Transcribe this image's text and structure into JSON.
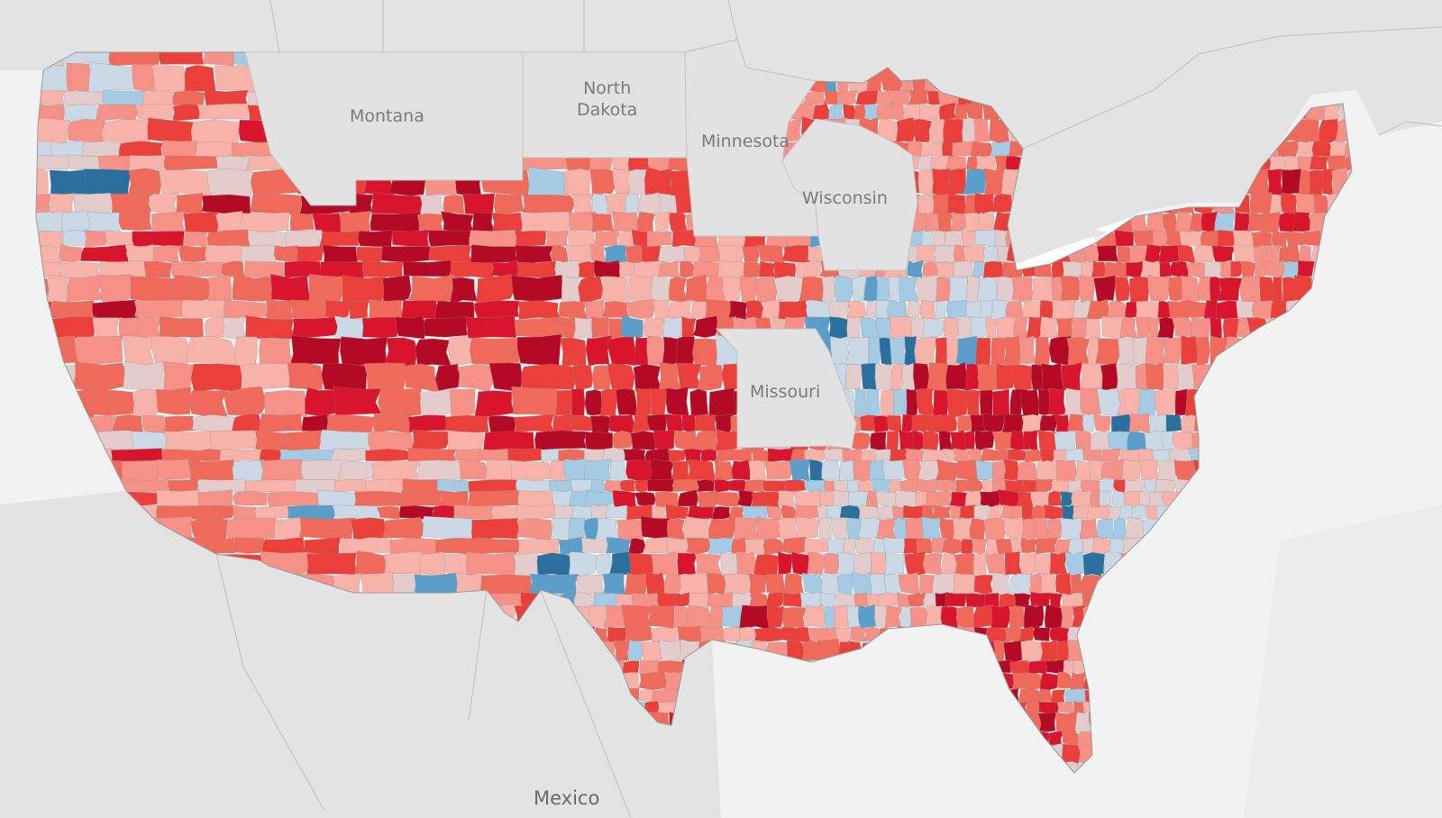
{
  "map": {
    "type": "county-choropleth",
    "region": "contiguous-united-states",
    "colors": {
      "water": "#f2f2f2",
      "land": "#e3e3e3",
      "lake": "#ffffff",
      "border": "#c4c4c4",
      "county_stroke": "#8c8c8c",
      "scale": [
        "#2a6f9d",
        "#5b9ec9",
        "#a4cbe3",
        "#cbd9e6",
        "#e4cccc",
        "#f7b3aa",
        "#f59186",
        "#f06a5c",
        "#ea3f3a",
        "#d8152d",
        "#b40a26"
      ]
    },
    "labels": [
      {
        "name": "label-montana",
        "text": "Montana"
      },
      {
        "name": "label-north-dakota",
        "text": "North\nDakota"
      },
      {
        "name": "label-minnesota",
        "text": "Minnesota"
      },
      {
        "name": "label-wisconsin",
        "text": "Wisconsin"
      },
      {
        "name": "label-missouri",
        "text": "Missouri"
      },
      {
        "name": "label-mexico",
        "text": "Mexico"
      }
    ]
  }
}
